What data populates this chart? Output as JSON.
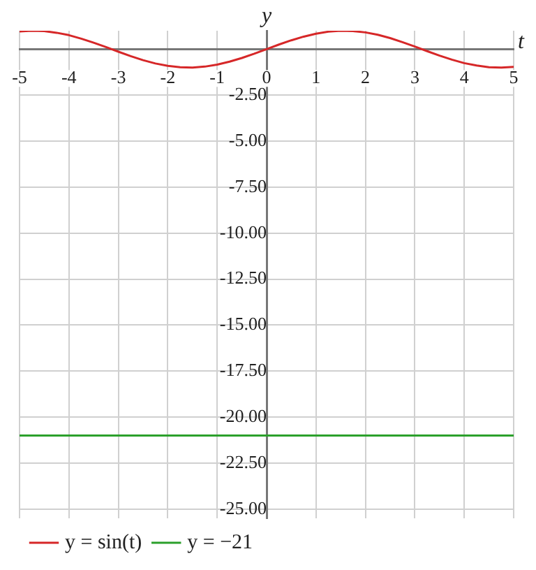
{
  "chart_data": {
    "type": "line",
    "xlabel": "t",
    "ylabel": "y",
    "xlim": [
      -5,
      5
    ],
    "xticks": [
      -5,
      -4,
      -3,
      -2,
      -1,
      0,
      1,
      2,
      3,
      4,
      5
    ],
    "ylim": [
      -25.5,
      1
    ],
    "yticks": [
      {
        "value": -25,
        "label": "-25.00"
      },
      {
        "value": -22.5,
        "label": "-22.50"
      },
      {
        "value": -20,
        "label": "-20.00"
      },
      {
        "value": -17.5,
        "label": "-17.50"
      },
      {
        "value": -15,
        "label": "-15.00"
      },
      {
        "value": -12.5,
        "label": "-12.50"
      },
      {
        "value": -10,
        "label": "-10.00"
      },
      {
        "value": -7.5,
        "label": "-7.50"
      },
      {
        "value": -5,
        "label": "-5.00"
      },
      {
        "value": -2.5,
        "label": "-2.50"
      },
      {
        "value": 0,
        "label": null
      }
    ],
    "grid": true,
    "legend": "bottom",
    "marker": "none",
    "line_style": "solid",
    "series": [
      {
        "name": "y = sin(t)",
        "color": "#d62728",
        "x": [
          -5,
          -4.75,
          -4.5,
          -4.25,
          -4,
          -3.75,
          -3.5,
          -3.25,
          -3,
          -2.75,
          -2.5,
          -2.25,
          -2,
          -1.75,
          -1.5,
          -1.25,
          -1,
          -0.75,
          -0.5,
          -0.25,
          0,
          0.25,
          0.5,
          0.75,
          1,
          1.25,
          1.5,
          1.75,
          2,
          2.25,
          2.5,
          2.75,
          3,
          3.25,
          3.5,
          3.75,
          4,
          4.25,
          4.5,
          4.75,
          5
        ],
        "values": [
          0.96,
          1.0,
          0.98,
          0.89,
          0.76,
          0.57,
          0.35,
          0.11,
          -0.14,
          -0.38,
          -0.6,
          -0.78,
          -0.91,
          -0.98,
          -1.0,
          -0.95,
          -0.84,
          -0.68,
          -0.48,
          -0.25,
          0,
          0.25,
          0.48,
          0.68,
          0.84,
          0.95,
          1.0,
          0.98,
          0.91,
          0.78,
          0.6,
          0.38,
          0.14,
          -0.11,
          -0.35,
          -0.57,
          -0.76,
          -0.89,
          -0.98,
          -1.0,
          -0.96
        ]
      },
      {
        "name": "y = −21",
        "color": "#2ca02c",
        "x": [
          -5,
          5
        ],
        "values": [
          -21,
          -21
        ]
      }
    ]
  }
}
